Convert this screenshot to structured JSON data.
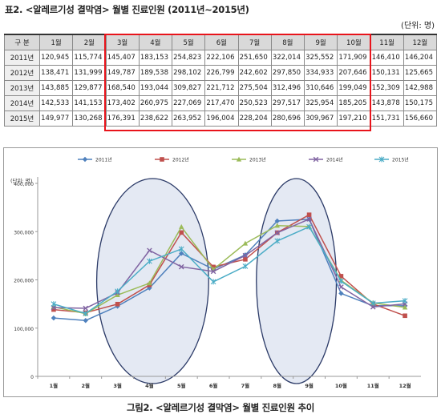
{
  "table": {
    "title": "표2. <알레르기성 결막염> 월별 진료인원 (2011년~2015년)",
    "unit": "(단위: 명)",
    "header": [
      "구 분",
      "1월",
      "2월",
      "3월",
      "4월",
      "5월",
      "6월",
      "7월",
      "8월",
      "9월",
      "10월",
      "11월",
      "12월"
    ],
    "rows": [
      [
        "2011년",
        "120,945",
        "115,774",
        "145,407",
        "183,153",
        "254,823",
        "222,106",
        "251,650",
        "322,014",
        "325,552",
        "171,909",
        "146,410",
        "146,204"
      ],
      [
        "2012년",
        "138,471",
        "131,999",
        "149,787",
        "189,538",
        "298,102",
        "226,799",
        "242,602",
        "297,850",
        "334,933",
        "207,646",
        "150,131",
        "125,665"
      ],
      [
        "2013년",
        "143,885",
        "129,877",
        "168,540",
        "193,044",
        "309,827",
        "221,712",
        "275,504",
        "312,496",
        "310,646",
        "199,049",
        "152,309",
        "142,988"
      ],
      [
        "2014년",
        "142,533",
        "141,153",
        "173,402",
        "260,975",
        "227,069",
        "217,470",
        "250,523",
        "297,517",
        "325,954",
        "185,205",
        "143,878",
        "150,175"
      ],
      [
        "2015년",
        "149,977",
        "130,268",
        "176,391",
        "238,622",
        "263,952",
        "196,004",
        "228,204",
        "280,696",
        "309,967",
        "197,210",
        "151,731",
        "156,660"
      ]
    ]
  },
  "chart_data": {
    "type": "line",
    "ylabel": "(단위: 명)",
    "categories": [
      "1월",
      "2월",
      "3월",
      "4월",
      "5월",
      "6월",
      "7월",
      "8월",
      "9월",
      "10월",
      "11월",
      "12월"
    ],
    "y_ticks": [
      "0",
      "100,000",
      "200,000",
      "300,000",
      "400,000"
    ],
    "ylim": [
      0,
      400000
    ],
    "legend_position": "top",
    "series": [
      {
        "name": "2011년",
        "color": "#4f81bd",
        "marker": "diamond",
        "values": [
          120945,
          115774,
          145407,
          183153,
          254823,
          222106,
          251650,
          322014,
          325552,
          171909,
          146410,
          146204
        ]
      },
      {
        "name": "2012년",
        "color": "#c0504d",
        "marker": "square",
        "values": [
          138471,
          131999,
          149787,
          189538,
          298102,
          226799,
          242602,
          297850,
          334933,
          207646,
          150131,
          125665
        ]
      },
      {
        "name": "2013년",
        "color": "#9bbb59",
        "marker": "triangle",
        "values": [
          143885,
          129877,
          168540,
          193044,
          309827,
          221712,
          275504,
          312496,
          310646,
          199049,
          152309,
          142988
        ]
      },
      {
        "name": "2014년",
        "color": "#8064a2",
        "marker": "x",
        "values": [
          142533,
          141153,
          173402,
          260975,
          227069,
          217470,
          250523,
          297517,
          325954,
          185205,
          143878,
          150175
        ]
      },
      {
        "name": "2015년",
        "color": "#4bacc6",
        "marker": "star",
        "values": [
          149977,
          130268,
          176391,
          238622,
          263952,
          196004,
          228204,
          280696,
          309967,
          197210,
          151731,
          156660
        ]
      }
    ],
    "highlight_ellipses": [
      {
        "from_category": "3월",
        "to_category": "5월"
      },
      {
        "from_category": "8월",
        "to_category": "9월"
      }
    ],
    "grid": false
  },
  "caption": "그림2. <알레르기성 결막염> 월별 진료인원 추이"
}
